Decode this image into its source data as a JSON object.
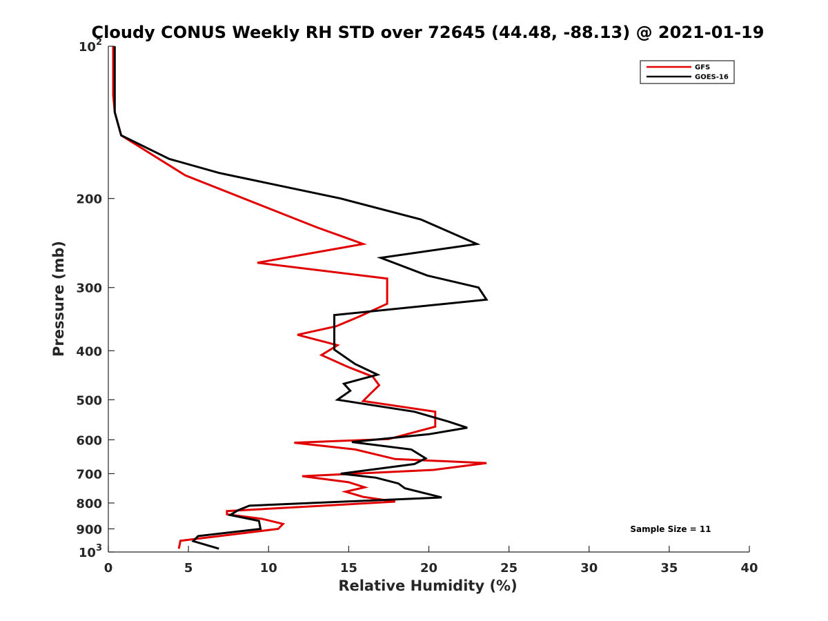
{
  "chart_data": {
    "type": "line",
    "title": "Cloudy CONUS Weekly RH STD over 72645 (44.48, -88.13) @ 2021-01-19",
    "xlabel": "Relative Humidity (%)",
    "ylabel": "Pressure (mb)",
    "xlim": [
      0,
      40
    ],
    "ylim": [
      100,
      1000
    ],
    "y_scale": "log",
    "y_reversed": true,
    "grid": false,
    "legend_position": "top-right",
    "x_ticks": [
      "0",
      "5",
      "10",
      "15",
      "20",
      "25",
      "30",
      "35",
      "40"
    ],
    "y_ticks": [
      {
        "value": 100,
        "base": "10",
        "exp": "2"
      },
      {
        "value": 200,
        "label": "200"
      },
      {
        "value": 300,
        "label": "300"
      },
      {
        "value": 400,
        "label": "400"
      },
      {
        "value": 500,
        "label": "500"
      },
      {
        "value": 600,
        "label": "600"
      },
      {
        "value": 700,
        "label": "700"
      },
      {
        "value": 800,
        "label": "800"
      },
      {
        "value": 900,
        "label": "900"
      },
      {
        "value": 1000,
        "base": "10",
        "exp": "3"
      }
    ],
    "annotation": "Sample Size = 11",
    "series": [
      {
        "name": "GFS",
        "color": "#e00000",
        "points": [
          [
            0.3,
            100
          ],
          [
            0.3,
            110
          ],
          [
            0.3,
            125
          ],
          [
            0.4,
            135
          ],
          [
            0.8,
            150
          ],
          [
            4.8,
            180
          ],
          [
            13,
            228
          ],
          [
            15.9,
            246
          ],
          [
            9.3,
            268
          ],
          [
            17.4,
            288
          ],
          [
            17.4,
            323
          ],
          [
            15.7,
            342
          ],
          [
            14.2,
            358
          ],
          [
            11.8,
            372
          ],
          [
            14.3,
            390
          ],
          [
            13.3,
            408
          ],
          [
            14.9,
            430
          ],
          [
            16.5,
            450
          ],
          [
            16.9,
            468
          ],
          [
            16.4,
            485
          ],
          [
            15.9,
            503
          ],
          [
            20.4,
            528
          ],
          [
            20.4,
            565
          ],
          [
            17.5,
            598
          ],
          [
            11.6,
            608
          ],
          [
            15.4,
            627
          ],
          [
            17.9,
            655
          ],
          [
            23.6,
            667
          ],
          [
            20.3,
            688
          ],
          [
            12.1,
            708
          ],
          [
            15,
            728
          ],
          [
            16,
            745
          ],
          [
            14.8,
            760
          ],
          [
            15.9,
            778
          ],
          [
            17.9,
            795
          ],
          [
            7.4,
            830
          ],
          [
            7.4,
            842
          ],
          [
            9.6,
            860
          ],
          [
            10.9,
            880
          ],
          [
            10.6,
            900
          ],
          [
            4.5,
            950
          ],
          [
            4.4,
            985
          ]
        ]
      },
      {
        "name": "GOES-16",
        "color": "#000000",
        "points": [
          [
            0.4,
            100
          ],
          [
            0.4,
            110
          ],
          [
            0.4,
            125
          ],
          [
            0.4,
            135
          ],
          [
            0.8,
            150
          ],
          [
            3.8,
            167
          ],
          [
            6.9,
            178
          ],
          [
            14.5,
            200
          ],
          [
            19.5,
            220
          ],
          [
            23,
            246
          ],
          [
            17,
            262
          ],
          [
            19.9,
            284
          ],
          [
            23.1,
            300
          ],
          [
            23.6,
            317
          ],
          [
            14.1,
            340
          ],
          [
            14.1,
            380
          ],
          [
            14.1,
            398
          ],
          [
            15.4,
            425
          ],
          [
            16.8,
            446
          ],
          [
            14.7,
            465
          ],
          [
            15.1,
            480
          ],
          [
            14.3,
            500
          ],
          [
            19.1,
            528
          ],
          [
            21.2,
            552
          ],
          [
            22.4,
            568
          ],
          [
            20,
            585
          ],
          [
            15.2,
            606
          ],
          [
            18.9,
            627
          ],
          [
            19.8,
            653
          ],
          [
            19.1,
            670
          ],
          [
            14.5,
            700
          ],
          [
            16.7,
            713
          ],
          [
            18.1,
            732
          ],
          [
            18.5,
            748
          ],
          [
            20.8,
            780
          ],
          [
            8.8,
            810
          ],
          [
            8.1,
            827
          ],
          [
            7.6,
            845
          ],
          [
            9.4,
            868
          ],
          [
            9.5,
            900
          ],
          [
            5.6,
            930
          ],
          [
            5.3,
            952
          ],
          [
            6.9,
            985
          ]
        ]
      }
    ]
  }
}
